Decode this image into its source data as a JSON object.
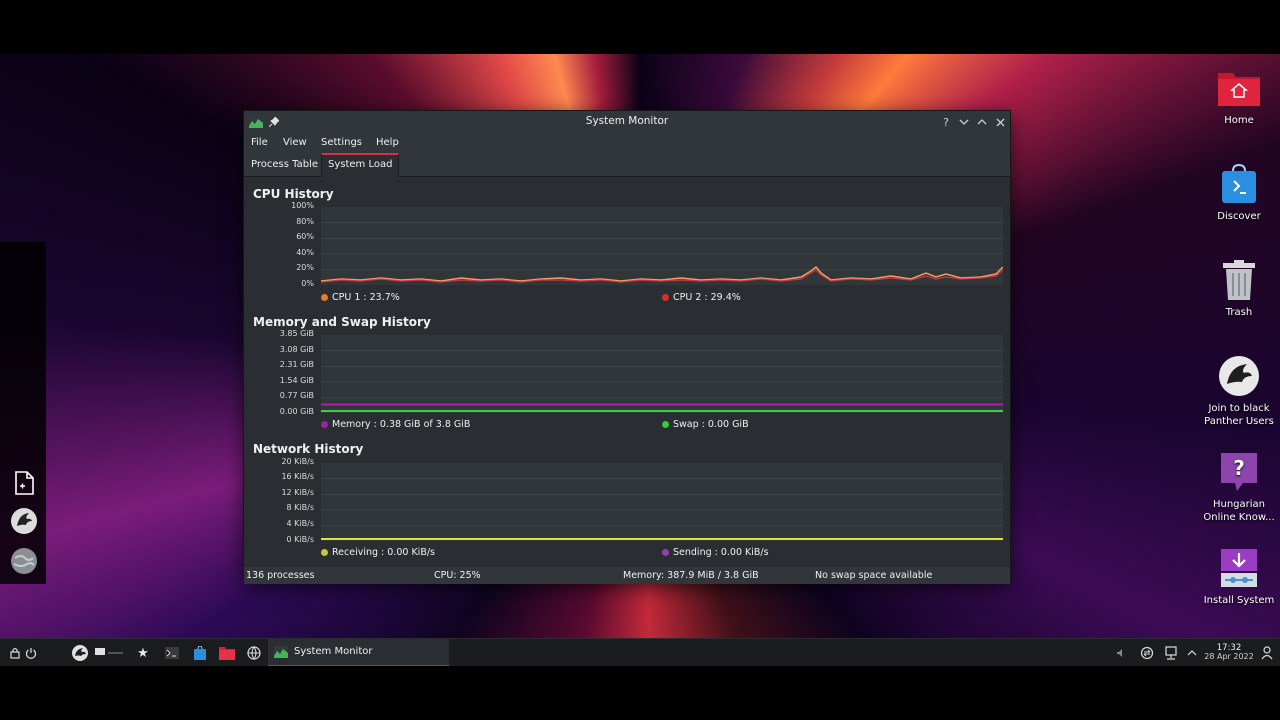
{
  "window": {
    "title": "System Monitor",
    "menu": [
      "File",
      "View",
      "Settings",
      "Help"
    ],
    "tabs": [
      {
        "label": "Process Table",
        "active": false
      },
      {
        "label": "System Load",
        "active": true
      }
    ]
  },
  "cpu": {
    "title": "CPU History",
    "y_ticks": [
      "100%",
      "80%",
      "60%",
      "40%",
      "20%",
      "0%"
    ],
    "legend": [
      {
        "label": "CPU 1 : 23.7%",
        "color": "#e67e22"
      },
      {
        "label": "CPU 2 : 29.4%",
        "color": "#d32f2f"
      }
    ]
  },
  "memory": {
    "title": "Memory and Swap History",
    "y_ticks": [
      "3.85 GiB",
      "3.08 GiB",
      "2.31 GiB",
      "1.54 GiB",
      "0.77 GiB",
      "0.00 GiB"
    ],
    "legend": [
      {
        "label": "Memory : 0.38 GiB of 3.8 GiB",
        "color": "#a020a0"
      },
      {
        "label": "Swap : 0.00 GiB",
        "color": "#2ecc40"
      }
    ]
  },
  "network": {
    "title": "Network History",
    "y_ticks": [
      "20 KiB/s",
      "16 KiB/s",
      "12 KiB/s",
      "8 KiB/s",
      "4 KiB/s",
      "0 KiB/s"
    ],
    "legend": [
      {
        "label": "Receiving : 0.00 KiB/s",
        "color": "#c8c832"
      },
      {
        "label": "Sending : 0.00 KiB/s",
        "color": "#8e44ad"
      }
    ]
  },
  "status": {
    "processes": "136 processes",
    "cpu": "CPU: 25%",
    "memory": "Memory: 387.9 MiB / 3.8 GiB",
    "swap": "No swap space available"
  },
  "desktop_icons": [
    {
      "label": "Home",
      "icon": "home-folder-icon"
    },
    {
      "label": "Discover",
      "icon": "discover-icon"
    },
    {
      "label": "Trash",
      "icon": "trash-icon"
    },
    {
      "label": "Join to black Panther Users",
      "icon": "panther-icon"
    },
    {
      "label": "Hungarian Online Know...",
      "icon": "help-icon"
    },
    {
      "label": "Install System",
      "icon": "install-icon"
    }
  ],
  "taskbar": {
    "task_label": "System Monitor",
    "time": "17:32",
    "date": "28 Apr 2022"
  },
  "colors": {
    "accent": "#d6304a",
    "window_bg": "#2a2e32",
    "plot_bg": "#31363b"
  }
}
